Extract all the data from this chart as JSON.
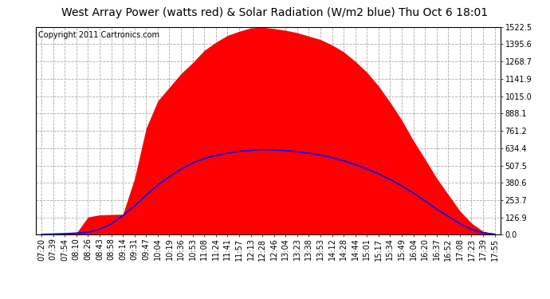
{
  "title": "West Array Power (watts red) & Solar Radiation (W/m2 blue) Thu Oct 6 18:01",
  "copyright": "Copyright 2011 Cartronics.com",
  "ylabel_right": [
    "0.0",
    "126.9",
    "253.7",
    "380.6",
    "507.5",
    "634.4",
    "761.2",
    "888.1",
    "1015.0",
    "1141.9",
    "1268.7",
    "1395.6",
    "1522.5"
  ],
  "ymax": 1522.5,
  "ymin": 0.0,
  "red_fill_color": "#ff0000",
  "blue_line_color": "#0000ff",
  "title_fontsize": 10,
  "tick_label_fontsize": 7,
  "copyright_fontsize": 7,
  "time_labels": [
    "07:20",
    "07:39",
    "07:54",
    "08:10",
    "08:26",
    "08:43",
    "08:58",
    "09:14",
    "09:31",
    "09:47",
    "10:04",
    "10:19",
    "10:36",
    "10:53",
    "11:08",
    "11:24",
    "11:41",
    "11:57",
    "12:13",
    "12:28",
    "12:46",
    "13:04",
    "13:23",
    "13:38",
    "13:53",
    "14:12",
    "14:28",
    "14:44",
    "15:01",
    "15:17",
    "15:34",
    "15:49",
    "16:04",
    "16:20",
    "16:37",
    "16:52",
    "17:08",
    "17:23",
    "17:39",
    "17:55"
  ],
  "power_values": [
    5,
    8,
    10,
    12,
    130,
    145,
    148,
    150,
    410,
    780,
    980,
    1080,
    1180,
    1260,
    1350,
    1410,
    1460,
    1490,
    1515,
    1520,
    1510,
    1498,
    1480,
    1455,
    1430,
    1390,
    1340,
    1270,
    1190,
    1090,
    970,
    840,
    690,
    555,
    415,
    295,
    175,
    85,
    25,
    8
  ],
  "radiation_values": [
    2,
    5,
    8,
    12,
    18,
    40,
    80,
    140,
    210,
    290,
    365,
    425,
    480,
    525,
    558,
    580,
    598,
    610,
    618,
    623,
    621,
    617,
    608,
    597,
    584,
    565,
    542,
    514,
    482,
    446,
    405,
    358,
    305,
    248,
    188,
    135,
    82,
    40,
    14,
    4
  ]
}
